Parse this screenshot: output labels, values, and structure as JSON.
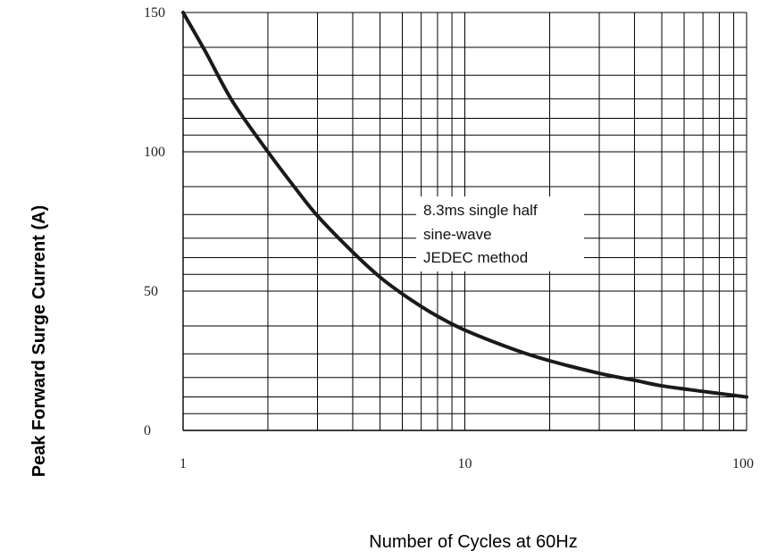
{
  "chart_data": {
    "type": "line",
    "title": "",
    "xlabel": "Number of Cycles at 60Hz",
    "ylabel": "Peak Forward Surge Current (A)",
    "x_scale": "log",
    "xlim": [
      1,
      100
    ],
    "ylim": [
      0,
      150
    ],
    "x_ticks": [
      1,
      10,
      100
    ],
    "x_tick_labels": [
      "1",
      "10",
      "100"
    ],
    "y_ticks": [
      0,
      50,
      100,
      150
    ],
    "y_tick_labels": [
      "0",
      "50",
      "100",
      "150"
    ],
    "grid": true,
    "grid_color": "#000000",
    "line_color": "#1a1a1a",
    "annotation": [
      "8.3ms single half",
      "sine-wave",
      "JEDEC method"
    ],
    "series": [
      {
        "x": [
          1,
          1.2,
          1.5,
          2,
          2.5,
          3,
          4,
          5,
          6,
          7,
          8,
          10,
          15,
          20,
          30,
          40,
          50,
          70,
          100
        ],
        "y": [
          150,
          136,
          118,
          100,
          87,
          77,
          64,
          55,
          49,
          44.5,
          41,
          36,
          29,
          25,
          20.5,
          18,
          16,
          14,
          12
        ]
      }
    ]
  }
}
